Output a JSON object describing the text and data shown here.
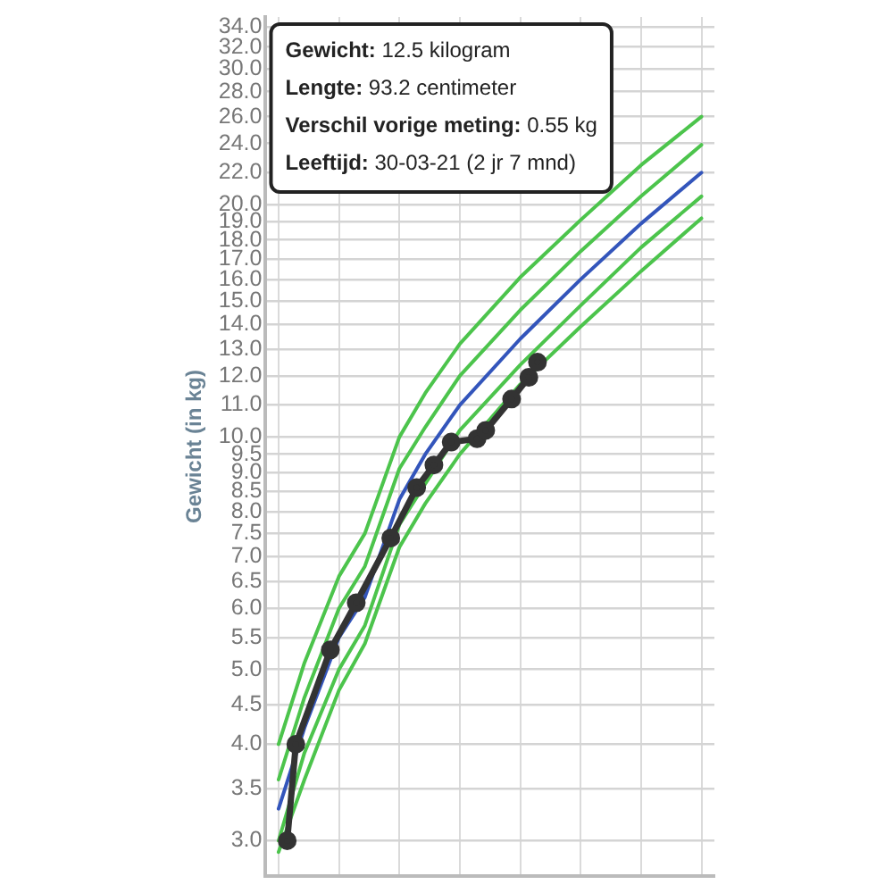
{
  "chart_data": {
    "type": "line",
    "ylabel": "Gewicht (in kg)",
    "categories": [
      null,
      null,
      null,
      null,
      null,
      null,
      null,
      null,
      null,
      null,
      null,
      null,
      null,
      null,
      null,
      null,
      null,
      null,
      null,
      null,
      null,
      null,
      null,
      null,
      null,
      null,
      null,
      null,
      null,
      null,
      null,
      null,
      null,
      null,
      null,
      null,
      null,
      null,
      null,
      null,
      null,
      null,
      null,
      null,
      null,
      null,
      null,
      null,
      null,
      null,
      null,
      null
    ],
    "series": [
      {
        "color": "#4cc44c",
        "marker": "none",
        "values": [
          null,
          4.0,
          null,
          null,
          5.1,
          null,
          null,
          null,
          6.6,
          null,
          null,
          7.5,
          null,
          null,
          null,
          10.0,
          null,
          null,
          11.4,
          null,
          null,
          null,
          13.2,
          null,
          null,
          null,
          null,
          null,
          null,
          16.1,
          null,
          null,
          null,
          null,
          null,
          null,
          19.1,
          null,
          null,
          null,
          null,
          null,
          null,
          22.5,
          null,
          null,
          null,
          null,
          null,
          null,
          26.0,
          null
        ]
      },
      {
        "color": "#4cc44c",
        "marker": "none",
        "values": [
          null,
          3.6,
          null,
          null,
          4.6,
          null,
          null,
          null,
          6.0,
          null,
          null,
          6.8,
          null,
          null,
          null,
          9.1,
          null,
          null,
          10.3,
          null,
          null,
          null,
          12.0,
          null,
          null,
          null,
          null,
          null,
          null,
          14.6,
          null,
          null,
          null,
          null,
          null,
          null,
          17.4,
          null,
          null,
          null,
          null,
          null,
          null,
          20.5,
          null,
          null,
          null,
          null,
          null,
          null,
          23.9,
          null
        ]
      },
      {
        "color": "#3355bb",
        "marker": "none",
        "values": [
          null,
          3.3,
          null,
          null,
          4.2,
          null,
          null,
          null,
          5.5,
          null,
          null,
          6.2,
          null,
          null,
          null,
          8.3,
          null,
          null,
          9.5,
          null,
          null,
          null,
          11.0,
          null,
          null,
          null,
          null,
          null,
          null,
          13.4,
          null,
          null,
          null,
          null,
          null,
          null,
          16.0,
          null,
          null,
          null,
          null,
          null,
          null,
          18.9,
          null,
          null,
          null,
          null,
          null,
          null,
          22.0,
          null
        ]
      },
      {
        "color": "#4cc44c",
        "marker": "none",
        "values": [
          null,
          3.0,
          null,
          null,
          3.9,
          null,
          null,
          null,
          5.0,
          null,
          null,
          5.7,
          null,
          null,
          null,
          7.7,
          null,
          null,
          8.7,
          null,
          null,
          null,
          10.2,
          null,
          null,
          null,
          null,
          null,
          null,
          12.4,
          null,
          null,
          null,
          null,
          null,
          null,
          14.8,
          null,
          null,
          null,
          null,
          null,
          null,
          17.6,
          null,
          null,
          null,
          null,
          null,
          null,
          20.5,
          null
        ]
      },
      {
        "color": "#4cc44c",
        "marker": "none",
        "values": [
          null,
          2.9,
          null,
          null,
          3.6,
          null,
          null,
          null,
          4.7,
          null,
          null,
          5.4,
          null,
          null,
          null,
          7.2,
          null,
          null,
          8.2,
          null,
          null,
          null,
          9.5,
          null,
          null,
          null,
          null,
          null,
          null,
          11.7,
          null,
          null,
          null,
          null,
          null,
          null,
          13.9,
          null,
          null,
          null,
          null,
          null,
          null,
          16.4,
          null,
          null,
          null,
          null,
          null,
          null,
          19.2,
          null
        ]
      },
      {
        "color": "#333333",
        "marker": "circle",
        "values": [
          null,
          null,
          3.0,
          4.0,
          null,
          null,
          null,
          5.3,
          null,
          null,
          6.1,
          null,
          null,
          null,
          7.4,
          null,
          null,
          8.6,
          null,
          9.2,
          null,
          9.85,
          null,
          null,
          9.95,
          10.2,
          null,
          null,
          11.2,
          null,
          11.95,
          12.5,
          null,
          null,
          null,
          null,
          null,
          null,
          null,
          null,
          null,
          null,
          null,
          null,
          null,
          null,
          null,
          null,
          null,
          null,
          null,
          null
        ]
      }
    ],
    "log": true,
    "ylim": [
      2.7,
      35
    ],
    "yticks": [
      {
        "value": 3,
        "label": "3.0"
      },
      {
        "value": 3.5,
        "label": "3.5"
      },
      {
        "value": 4,
        "label": "4.0"
      },
      {
        "value": 4.5,
        "label": "4.5"
      },
      {
        "value": 5,
        "label": "5.0"
      },
      {
        "value": 5.5,
        "label": "5.5"
      },
      {
        "value": 6,
        "label": "6.0"
      },
      {
        "value": 6.5,
        "label": "6.5"
      },
      {
        "value": 7,
        "label": "7.0"
      },
      {
        "value": 7.5,
        "label": "7.5"
      },
      {
        "value": 8,
        "label": "8.0"
      },
      {
        "value": 8.5,
        "label": "8.5"
      },
      {
        "value": 9,
        "label": "9.0"
      },
      {
        "value": 9.5,
        "label": "9.5"
      },
      {
        "value": 10,
        "label": "10.0"
      },
      {
        "value": 11,
        "label": "11.0"
      },
      {
        "value": 12,
        "label": "12.0"
      },
      {
        "value": 13,
        "label": "13.0"
      },
      {
        "value": 14,
        "label": "14.0"
      },
      {
        "value": 15,
        "label": "15.0"
      },
      {
        "value": 16,
        "label": "16.0"
      },
      {
        "value": 17,
        "label": "17.0"
      },
      {
        "value": 18,
        "label": "18.0"
      },
      {
        "value": 19,
        "label": "19.0"
      },
      {
        "value": 20,
        "label": "20.0"
      },
      {
        "value": 22,
        "label": "22.0"
      },
      {
        "value": 24,
        "label": "24.0"
      },
      {
        "value": 26,
        "label": "26.0"
      },
      {
        "value": 28,
        "label": "28.0"
      },
      {
        "value": 30,
        "label": "30.0"
      },
      {
        "value": 32,
        "label": "32.0"
      },
      {
        "value": 34,
        "label": "34.0"
      }
    ],
    "grid": true,
    "legend": false,
    "tick_labels": "y",
    "annotations": [
      "Gewicht: 12.5 kilogram",
      "Lengte: 93.2 centimeter",
      "Verschil vorige meting: 0.55 kg",
      "Leeftijd: 30-03-21 (2 jr 7 mnd)"
    ]
  }
}
